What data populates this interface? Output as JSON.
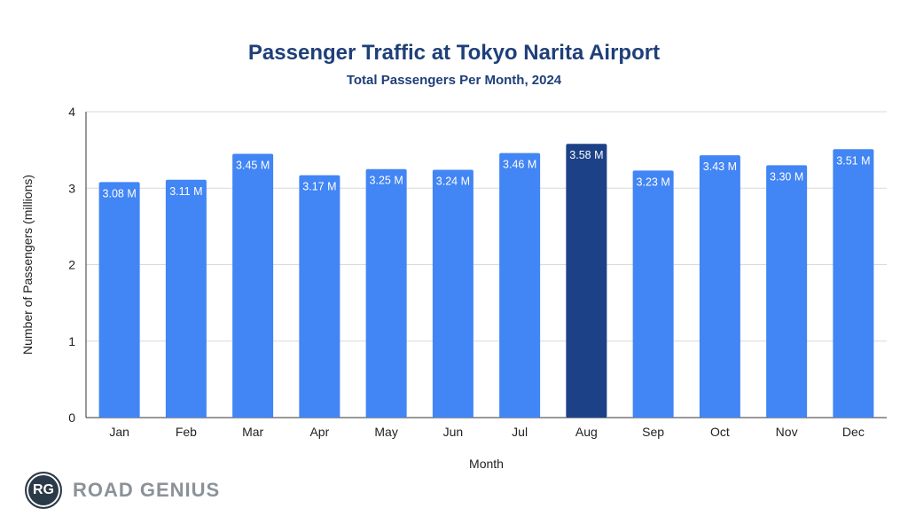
{
  "chart_data": {
    "type": "bar",
    "title": "Passenger Traffic at Tokyo Narita Airport",
    "subtitle": "Total Passengers Per Month, 2024",
    "xlabel": "Month",
    "ylabel": "Number of Passengers (millions)",
    "ylim": [
      0,
      4
    ],
    "yticks": [
      "0",
      "1",
      "2",
      "3",
      "4"
    ],
    "grid": true,
    "categories": [
      "Jan",
      "Feb",
      "Mar",
      "Apr",
      "May",
      "Jun",
      "Jul",
      "Aug",
      "Sep",
      "Oct",
      "Nov",
      "Dec"
    ],
    "values": [
      3.08,
      3.11,
      3.45,
      3.17,
      3.25,
      3.24,
      3.46,
      3.58,
      3.23,
      3.43,
      3.3,
      3.51
    ],
    "data_labels": [
      "3.08 M",
      "3.11 M",
      "3.45 M",
      "3.17 M",
      "3.25 M",
      "3.24 M",
      "3.46 M",
      "3.58 M",
      "3.23 M",
      "3.43 M",
      "3.30 M",
      "3.51 M"
    ],
    "highlight_index": 7,
    "colors": {
      "bar": "#4285f4",
      "highlight": "#1c4187",
      "title": "#1f3f7a"
    }
  },
  "logo": {
    "initials": "RG",
    "name": "ROAD GENIUS"
  }
}
